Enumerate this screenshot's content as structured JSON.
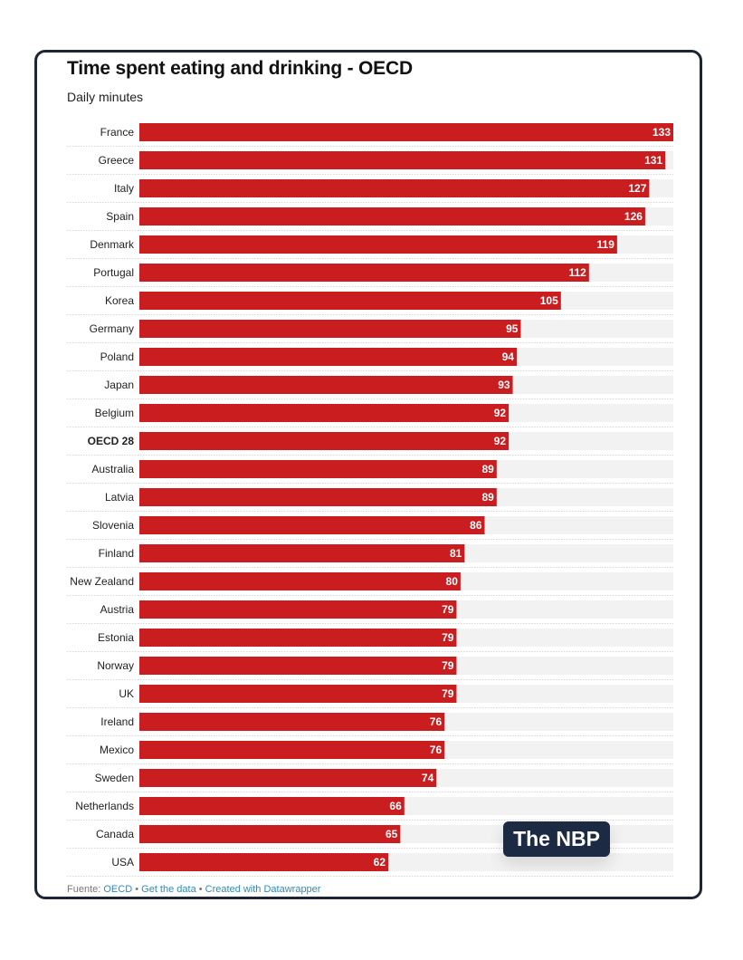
{
  "chart_data": {
    "type": "bar",
    "orientation": "horizontal",
    "title": "Time spent eating and drinking - OECD",
    "subtitle": "Daily minutes",
    "categories": [
      "France",
      "Greece",
      "Italy",
      "Spain",
      "Denmark",
      "Portugal",
      "Korea",
      "Germany",
      "Poland",
      "Japan",
      "Belgium",
      "OECD 28",
      "Australia",
      "Latvia",
      "Slovenia",
      "Finland",
      "New Zealand",
      "Austria",
      "Estonia",
      "Norway",
      "UK",
      "Ireland",
      "Mexico",
      "Sweden",
      "Netherlands",
      "Canada",
      "USA"
    ],
    "values": [
      133,
      131,
      127,
      126,
      119,
      112,
      105,
      95,
      94,
      93,
      92,
      92,
      89,
      89,
      86,
      81,
      80,
      79,
      79,
      79,
      79,
      76,
      76,
      74,
      66,
      65,
      62
    ],
    "highlighted_category": "OECD 28",
    "xlim": [
      0,
      133
    ],
    "bar_color": "#c91d1f",
    "track_color": "#f2f2f2",
    "label_color": "#ffffff"
  },
  "footer": {
    "prefix": "Fuente:",
    "source": "OECD",
    "separator": "•",
    "get_data": "Get the data",
    "created": "Created with Datawrapper"
  },
  "badge": {
    "text": "The NBP"
  }
}
